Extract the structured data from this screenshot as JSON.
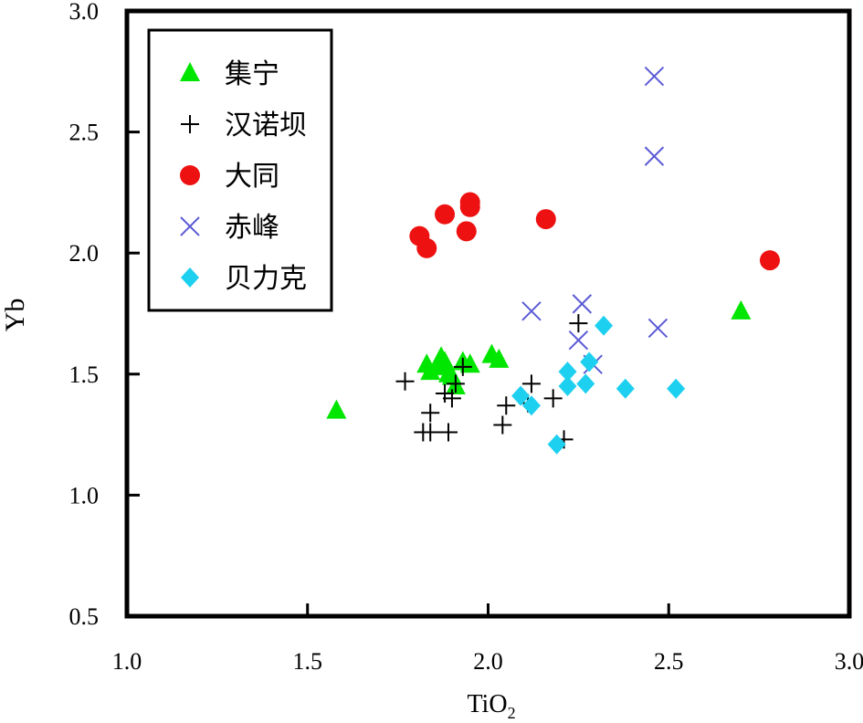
{
  "chart_data": {
    "type": "scatter",
    "xlabel": "TiO",
    "xlabel_subscript": "2",
    "ylabel": "Yb",
    "xlim": [
      1.0,
      3.0
    ],
    "ylim": [
      0.5,
      3.0
    ],
    "x_ticks": [
      "1.0",
      "1.5",
      "2.0",
      "2.5",
      "3.0"
    ],
    "y_ticks": [
      "0.5",
      "1.0",
      "1.5",
      "2.0",
      "2.5",
      "3.0"
    ],
    "grid": false,
    "legend_position": "top-left",
    "series": [
      {
        "name": "集宁",
        "marker": "triangle",
        "color": "#00e600",
        "points": [
          [
            1.58,
            1.35
          ],
          [
            1.83,
            1.54
          ],
          [
            1.84,
            1.51
          ],
          [
            1.86,
            1.53
          ],
          [
            1.87,
            1.57
          ],
          [
            1.88,
            1.55
          ],
          [
            1.89,
            1.5
          ],
          [
            1.9,
            1.49
          ],
          [
            1.91,
            1.45
          ],
          [
            1.93,
            1.55
          ],
          [
            1.95,
            1.54
          ],
          [
            2.01,
            1.58
          ],
          [
            2.03,
            1.56
          ],
          [
            2.7,
            1.76
          ]
        ]
      },
      {
        "name": "汉诺坝",
        "marker": "plus",
        "color": "#000000",
        "points": [
          [
            1.77,
            1.47
          ],
          [
            1.82,
            1.26
          ],
          [
            1.84,
            1.26
          ],
          [
            1.84,
            1.34
          ],
          [
            1.88,
            1.42
          ],
          [
            1.89,
            1.26
          ],
          [
            1.9,
            1.4
          ],
          [
            1.91,
            1.46
          ],
          [
            1.93,
            1.53
          ],
          [
            2.04,
            1.29
          ],
          [
            2.05,
            1.37
          ],
          [
            2.11,
            1.38
          ],
          [
            2.12,
            1.46
          ],
          [
            2.18,
            1.4
          ],
          [
            2.21,
            1.23
          ],
          [
            2.25,
            1.71
          ]
        ]
      },
      {
        "name": "大同",
        "marker": "circle",
        "color": "#ee1111",
        "points": [
          [
            1.81,
            2.07
          ],
          [
            1.83,
            2.02
          ],
          [
            1.88,
            2.16
          ],
          [
            1.94,
            2.09
          ],
          [
            1.95,
            2.19
          ],
          [
            1.95,
            2.21
          ],
          [
            2.16,
            2.14
          ],
          [
            2.78,
            1.97
          ]
        ]
      },
      {
        "name": "赤峰",
        "marker": "x",
        "color": "#5b5bd6",
        "points": [
          [
            2.12,
            1.76
          ],
          [
            2.25,
            1.64
          ],
          [
            2.26,
            1.79
          ],
          [
            2.29,
            1.54
          ],
          [
            2.46,
            2.73
          ],
          [
            2.46,
            2.4
          ],
          [
            2.47,
            1.69
          ]
        ]
      },
      {
        "name": "贝力克",
        "marker": "diamond",
        "color": "#1ed0f0",
        "points": [
          [
            2.09,
            1.41
          ],
          [
            2.12,
            1.37
          ],
          [
            2.19,
            1.21
          ],
          [
            2.22,
            1.45
          ],
          [
            2.22,
            1.51
          ],
          [
            2.27,
            1.46
          ],
          [
            2.28,
            1.55
          ],
          [
            2.32,
            1.7
          ],
          [
            2.38,
            1.44
          ],
          [
            2.52,
            1.44
          ]
        ]
      }
    ]
  }
}
